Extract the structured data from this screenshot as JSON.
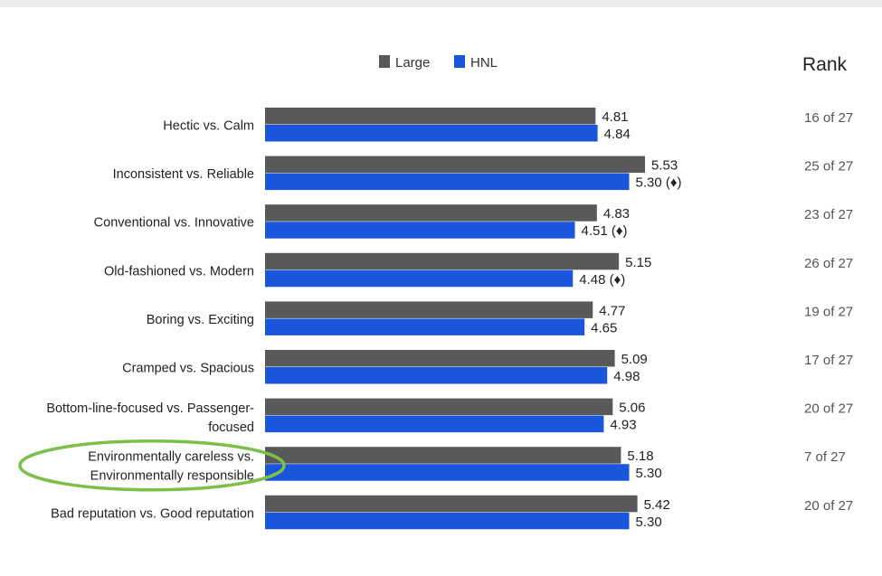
{
  "rank_header": "Rank",
  "chart_data": {
    "type": "bar",
    "orientation": "horizontal",
    "legend_position": "top-center",
    "grid": false,
    "xlim": [
      0,
      5.53
    ],
    "series": [
      {
        "name": "Large",
        "color": "#595959"
      },
      {
        "name": "HNL",
        "color": "#1a56db"
      }
    ],
    "rows": [
      {
        "lines": [
          "Hectic vs. Calm"
        ],
        "large": 4.81,
        "large_label": "4.81",
        "hnl": 4.84,
        "hnl_label": "4.84",
        "rank": "16 of 27"
      },
      {
        "lines": [
          "Inconsistent vs. Reliable"
        ],
        "large": 5.53,
        "large_label": "5.53",
        "hnl": 5.3,
        "hnl_label": "5.30 (♦)",
        "rank": "25 of 27"
      },
      {
        "lines": [
          "Conventional vs. Innovative"
        ],
        "large": 4.83,
        "large_label": "4.83",
        "hnl": 4.51,
        "hnl_label": "4.51 (♦)",
        "rank": "23 of 27"
      },
      {
        "lines": [
          "Old-fashioned vs. Modern"
        ],
        "large": 5.15,
        "large_label": "5.15",
        "hnl": 4.48,
        "hnl_label": "4.48 (♦)",
        "rank": "26 of 27"
      },
      {
        "lines": [
          "Boring vs. Exciting"
        ],
        "large": 4.77,
        "large_label": "4.77",
        "hnl": 4.65,
        "hnl_label": "4.65",
        "rank": "19 of 27"
      },
      {
        "lines": [
          "Cramped vs. Spacious"
        ],
        "large": 5.09,
        "large_label": "5.09",
        "hnl": 4.98,
        "hnl_label": "4.98",
        "rank": "17 of 27"
      },
      {
        "lines": [
          "Bottom-line-focused vs. Passenger-",
          "focused"
        ],
        "large": 5.06,
        "large_label": "5.06",
        "hnl": 4.93,
        "hnl_label": "4.93",
        "rank": "20 of 27"
      },
      {
        "lines": [
          "Environmentally careless vs.",
          "Environmentally responsible"
        ],
        "large": 5.18,
        "large_label": "5.18",
        "hnl": 5.3,
        "hnl_label": "5.30",
        "rank": "7 of 27",
        "highlighted": true
      },
      {
        "lines": [
          "Bad reputation vs. Good reputation"
        ],
        "large": 5.42,
        "large_label": "5.42",
        "hnl": 5.3,
        "hnl_label": "5.30",
        "rank": "20 of 27"
      }
    ],
    "highlight_color": "#7cc04a"
  }
}
